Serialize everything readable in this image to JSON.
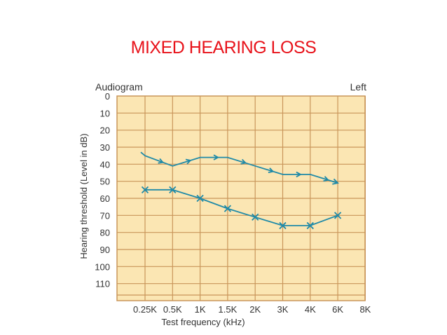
{
  "slide": {
    "title": "MIXED HEARING LOSS"
  },
  "colors": {
    "title": "#e8131b",
    "plot_bg": "#fbe6b3",
    "grid": "#c9955a",
    "series": "#1f8aa8",
    "text": "#333333"
  },
  "chart_data": {
    "type": "line",
    "title": "Audiogram",
    "corner_label": "Left",
    "xlabel": "Test frequency (kHz)",
    "ylabel": "Hearing threshold (Level in dB)",
    "x": [
      "0.25K",
      "0.5K",
      "1K",
      "1.5K",
      "2K",
      "3K",
      "4K",
      "6K",
      "8K"
    ],
    "y_ticks": [
      0,
      10,
      20,
      30,
      40,
      50,
      60,
      70,
      80,
      90,
      100,
      110
    ],
    "ylim": [
      0,
      120
    ],
    "y_inverted": true,
    "grid": true,
    "series": [
      {
        "marker": "arrow",
        "values": [
          35,
          41,
          36,
          36,
          41,
          46,
          46,
          51,
          null
        ]
      },
      {
        "marker": "x",
        "values": [
          55,
          55,
          60,
          66,
          71,
          76,
          76,
          70,
          null
        ]
      }
    ]
  }
}
